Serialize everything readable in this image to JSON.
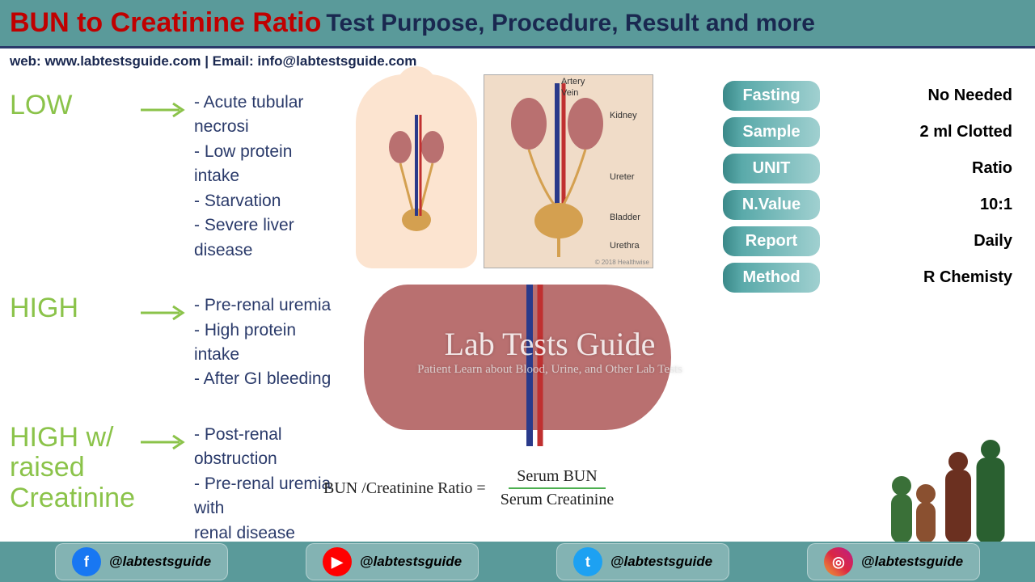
{
  "header": {
    "title_red": "BUN to Creatinine Ratio",
    "title_navy": "Test Purpose, Procedure, Result and more"
  },
  "contact": {
    "text": "web:  www.labtestsguide.com   |   Email: info@labtestsguide.com"
  },
  "categories": [
    {
      "label": "LOW",
      "items": [
        "- Acute tubular necrosi",
        "- Low protein intake",
        "- Starvation",
        "- Severe liver disease"
      ]
    },
    {
      "label": "HIGH",
      "items": [
        "- Pre-renal uremia",
        "- High protein intake",
        "- After GI bleeding"
      ]
    },
    {
      "label": "HIGH w/\nraised\nCreatinine",
      "items": [
        "- Post-renal obstruction",
        "- Pre-renal uremia with",
        "  renal disease"
      ]
    }
  ],
  "diagram_labels": [
    "Artery",
    "Vein",
    "Kidney",
    "Ureter",
    "Bladder",
    "Urethra"
  ],
  "diagram_credit": "© 2018 Healthwise",
  "watermark": {
    "title": "Lab Tests Guide",
    "sub": "Patient Learn about Blood, Urine, and Other Lab Tests"
  },
  "formula": {
    "lhs": "BUN /Creatinine Ratio  =",
    "top": "Serum BUN",
    "bot": "Serum Creatinine"
  },
  "info": [
    {
      "label": "Fasting",
      "value": "No Needed"
    },
    {
      "label": "Sample",
      "value": "2 ml Clotted"
    },
    {
      "label": "UNIT",
      "value": "Ratio"
    },
    {
      "label": "N.Value",
      "value": "10:1"
    },
    {
      "label": "Report",
      "value": "Daily"
    },
    {
      "label": "Method",
      "value": "R Chemisty"
    }
  ],
  "socials": [
    {
      "net": "facebook",
      "handle": "@labtestsguide",
      "bg": "#1877f2",
      "glyph": "f"
    },
    {
      "net": "youtube",
      "handle": "@labtestsguide",
      "bg": "#ff0000",
      "glyph": "▶"
    },
    {
      "net": "twitter",
      "handle": "@labtestsguide",
      "bg": "#1da1f2",
      "glyph": "t"
    },
    {
      "net": "instagram",
      "handle": "@labtestsguide",
      "bg": "linear-gradient(45deg,#f09433,#e6683c,#dc2743,#cc2366,#bc1888)",
      "glyph": "◎"
    }
  ],
  "colors": {
    "arrow": "#8bc34a",
    "family": [
      "#2a6030",
      "#6b3020",
      "#8a5030",
      "#3a7038"
    ]
  }
}
